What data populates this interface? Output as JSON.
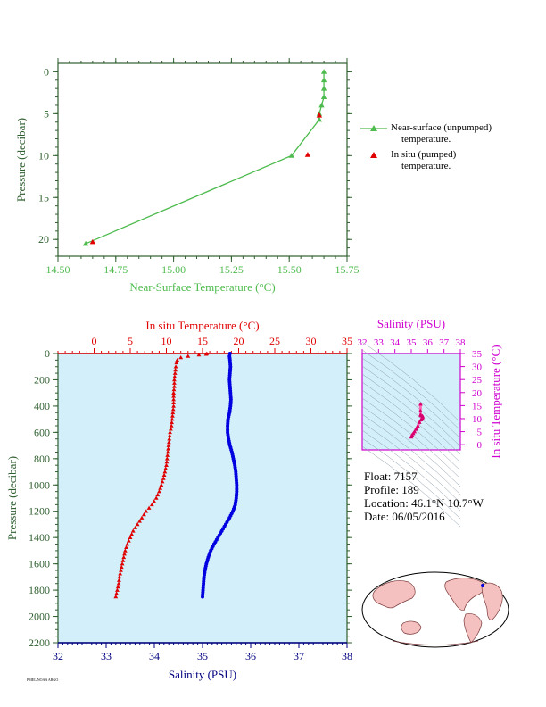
{
  "colors": {
    "green": "#4dbb4d",
    "red": "#e00000",
    "blue": "#0000e0",
    "magenta": "#d000d0",
    "navy": "#000080",
    "bg_light": "#d2effa",
    "dark_green_axis": "#2f5f2f"
  },
  "legend": {
    "item1_line1": "Near-surface (unpumped)",
    "item1_line2": "temperature.",
    "item2_line1": "In situ (pumped)",
    "item2_line2": "temperature."
  },
  "info": {
    "float": "Float:  7157",
    "profile": "Profile:  189",
    "location": "Location:  46.1°N  10.7°W",
    "date": "Date:  06/05/2016"
  },
  "footer_text": "PMEL/NOAA  ARGO",
  "chart_data": [
    {
      "type": "line",
      "name": "near-surface",
      "xlabel": "Near-Surface Temperature (°C)",
      "ylabel": "Pressure (decibar)",
      "xlim": [
        14.5,
        15.75
      ],
      "ylim": [
        22,
        -1
      ],
      "xticks": [
        "14.50",
        "14.75",
        "15.00",
        "15.25",
        "15.50",
        "15.75"
      ],
      "yticks": [
        "0",
        "5",
        "10",
        "15",
        "20"
      ],
      "series": [
        {
          "marker": "triangle",
          "x": [
            15.65,
            15.65,
            15.65,
            15.65,
            15.64,
            15.63,
            15.63,
            15.51,
            14.62
          ],
          "y": [
            0,
            1,
            2,
            3,
            4,
            5,
            5.7,
            10,
            20.5
          ]
        },
        {
          "marker": "triangle",
          "x": [
            15.63,
            15.58,
            14.65
          ],
          "y": [
            5.2,
            9.9,
            20.3
          ]
        }
      ]
    },
    {
      "type": "scatter",
      "name": "profile",
      "xlabel_top": "In situ Temperature (°C)",
      "xlabel_bottom": "Salinity (PSU)",
      "ylabel": "Pressure (decibar)",
      "temp_lim": [
        -5,
        35
      ],
      "sal_lim": [
        32,
        38
      ],
      "ylim": [
        2200,
        0
      ],
      "temp_ticks": [
        "0",
        "5",
        "10",
        "15",
        "20",
        "25",
        "30",
        "35"
      ],
      "sal_ticks": [
        "32",
        "33",
        "34",
        "35",
        "36",
        "37",
        "38"
      ],
      "yticks": [
        "0",
        "200",
        "400",
        "600",
        "800",
        "1000",
        "1200",
        "1400",
        "1600",
        "1800",
        "2000",
        "2200"
      ],
      "temperature": {
        "p": [
          0,
          5,
          10,
          20,
          30,
          50,
          70,
          100,
          150,
          200,
          250,
          300,
          350,
          400,
          450,
          500,
          550,
          600,
          650,
          700,
          750,
          800,
          850,
          900,
          950,
          1000,
          1050,
          1100,
          1150,
          1200,
          1250,
          1300,
          1350,
          1400,
          1450,
          1500,
          1550,
          1600,
          1650,
          1700,
          1750,
          1800,
          1850
        ],
        "t": [
          15.6,
          15.5,
          14.5,
          13.0,
          12.0,
          11.5,
          11.4,
          11.3,
          11.2,
          11.1,
          11.1,
          11.0,
          11.0,
          11.0,
          10.9,
          10.8,
          10.7,
          10.5,
          10.4,
          10.3,
          10.2,
          10.1,
          10.0,
          9.8,
          9.6,
          9.3,
          9.0,
          8.6,
          8.0,
          7.2,
          6.6,
          6.0,
          5.4,
          5.0,
          4.6,
          4.3,
          4.1,
          3.9,
          3.7,
          3.5,
          3.4,
          3.2,
          3.0
        ]
      },
      "salinity": {
        "p": [
          0,
          20,
          50,
          100,
          150,
          200,
          250,
          300,
          350,
          400,
          450,
          500,
          550,
          600,
          650,
          700,
          750,
          800,
          850,
          900,
          950,
          1000,
          1050,
          1100,
          1150,
          1200,
          1250,
          1300,
          1350,
          1400,
          1450,
          1500,
          1550,
          1600,
          1650,
          1700,
          1750,
          1800,
          1850
        ],
        "s": [
          35.57,
          35.56,
          35.57,
          35.58,
          35.57,
          35.56,
          35.57,
          35.58,
          35.59,
          35.58,
          35.56,
          35.53,
          35.52,
          35.52,
          35.54,
          35.57,
          35.61,
          35.64,
          35.67,
          35.69,
          35.7,
          35.71,
          35.71,
          35.7,
          35.68,
          35.63,
          35.56,
          35.48,
          35.4,
          35.32,
          35.24,
          35.17,
          35.12,
          35.08,
          35.05,
          35.03,
          35.02,
          35.01,
          35.0
        ]
      }
    },
    {
      "type": "scatter",
      "name": "ts-diagram",
      "xlabel": "Salinity (PSU)",
      "ylabel": "In situ Temperature (°C)",
      "xlim": [
        32,
        38
      ],
      "ylim": [
        -2,
        35
      ],
      "xticks": [
        "32",
        "33",
        "34",
        "35",
        "36",
        "37",
        "38"
      ],
      "yticks": [
        "0",
        "5",
        "10",
        "15",
        "20",
        "25",
        "30",
        "35"
      ],
      "s": [
        35.0,
        35.05,
        35.12,
        35.2,
        35.3,
        35.4,
        35.5,
        35.6,
        35.68,
        35.7,
        35.68,
        35.6,
        35.57,
        35.56,
        35.57
      ],
      "t": [
        3.0,
        3.7,
        4.3,
        5.0,
        6.0,
        7.2,
        8.6,
        9.6,
        10.2,
        10.7,
        11.0,
        11.2,
        11.5,
        13.0,
        15.6
      ]
    }
  ]
}
